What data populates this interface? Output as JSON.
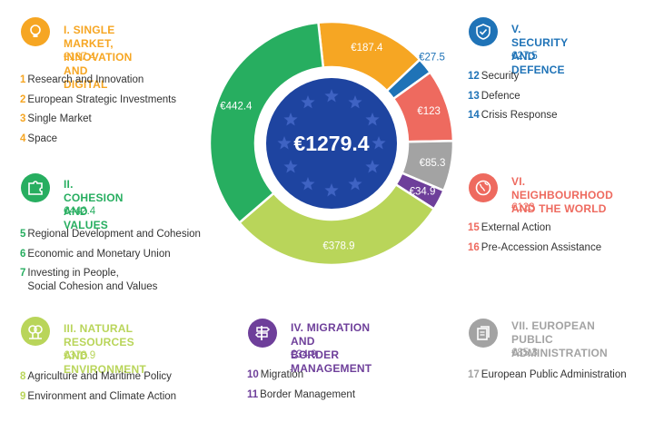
{
  "chart_data": {
    "type": "pie",
    "title": "",
    "center_total": "€1279.4",
    "slices": [
      {
        "name": "I. SINGLE MARKET, INNOVATION AND DIGITAL",
        "value": 187.4,
        "label": "€187.4",
        "color": "#F6A623"
      },
      {
        "name": "V. SECURITY AND DEFENCE",
        "value": 27.5,
        "label": "€27.5",
        "color": "#1F73B7"
      },
      {
        "name": "VI. NEIGHBOURHOOD AND THE WORLD",
        "value": 123,
        "label": "€123",
        "color": "#EE6A5F"
      },
      {
        "name": "VII. EUROPEAN PUBLIC ADMINISTRATION",
        "value": 85.3,
        "label": "€85.3",
        "color": "#A3A3A3"
      },
      {
        "name": "IV. MIGRATION AND BORDER MANAGEMENT",
        "value": 34.9,
        "label": "€34.9",
        "color": "#6E3F9A"
      },
      {
        "name": "III. NATURAL RESOURCES AND ENVIRONMENT",
        "value": 378.9,
        "label": "€378.9",
        "color": "#B9D55A"
      },
      {
        "name": "II. COHESION AND VALUES",
        "value": 442.4,
        "label": "€442.4",
        "color": "#27AE60"
      }
    ]
  },
  "headings": [
    {
      "title_lines": [
        "I. SINGLE MARKET,",
        "INNOVATION AND DIGITAL"
      ],
      "amount": "€187.4",
      "color": "#F6A623",
      "icon": "lightbulb-icon",
      "items": [
        {
          "n": "1",
          "text": "Research and Innovation"
        },
        {
          "n": "2",
          "text": "European Strategic Investments"
        },
        {
          "n": "3",
          "text": "Single Market"
        },
        {
          "n": "4",
          "text": "Space"
        }
      ]
    },
    {
      "title_lines": [
        "II. COHESION AND",
        "VALUES"
      ],
      "amount": "€442.4",
      "color": "#27AE60",
      "icon": "puzzle-icon",
      "items": [
        {
          "n": "5",
          "text": "Regional Development and Cohesion"
        },
        {
          "n": "6",
          "text": "Economic and Monetary Union"
        },
        {
          "n": "7",
          "text": "Investing in People,",
          "text2": "Social Cohesion and Values"
        }
      ]
    },
    {
      "title_lines": [
        "III. NATURAL RESOURCES",
        "AND ENVIRONMENT"
      ],
      "amount": "€378.9",
      "color": "#B9D55A",
      "icon": "tree-icon",
      "items": [
        {
          "n": "8",
          "text": "Agriculture and Maritime Policy"
        },
        {
          "n": "9",
          "text": "Environment and Climate Action"
        }
      ]
    },
    {
      "title_lines": [
        "IV. MIGRATION AND",
        "BORDER MANAGEMENT"
      ],
      "amount": "€34.9",
      "color": "#6E3F9A",
      "icon": "signpost-icon",
      "items": [
        {
          "n": "10",
          "text": "Migration"
        },
        {
          "n": "11",
          "text": "Border Management"
        }
      ]
    },
    {
      "title_lines": [
        "V. SECURITY",
        "AND DEFENCE"
      ],
      "amount": "€27.5",
      "color": "#1F73B7",
      "icon": "shield-icon",
      "items": [
        {
          "n": "12",
          "text": "Security"
        },
        {
          "n": "13",
          "text": "Defence"
        },
        {
          "n": "14",
          "text": "Crisis Response"
        }
      ]
    },
    {
      "title_lines": [
        "VI. NEIGHBOURHOOD",
        "AND THE WORLD"
      ],
      "amount": "€123",
      "color": "#EE6A5F",
      "icon": "globe-icon",
      "items": [
        {
          "n": "15",
          "text": "External Action"
        },
        {
          "n": "16",
          "text": "Pre-Accession Assistance"
        }
      ]
    },
    {
      "title_lines": [
        "VII. EUROPEAN PUBLIC",
        "ADMINISTRATION"
      ],
      "amount": "€85.3",
      "color": "#A3A3A3",
      "icon": "documents-icon",
      "items": [
        {
          "n": "17",
          "text": "European Public Administration"
        }
      ]
    }
  ]
}
